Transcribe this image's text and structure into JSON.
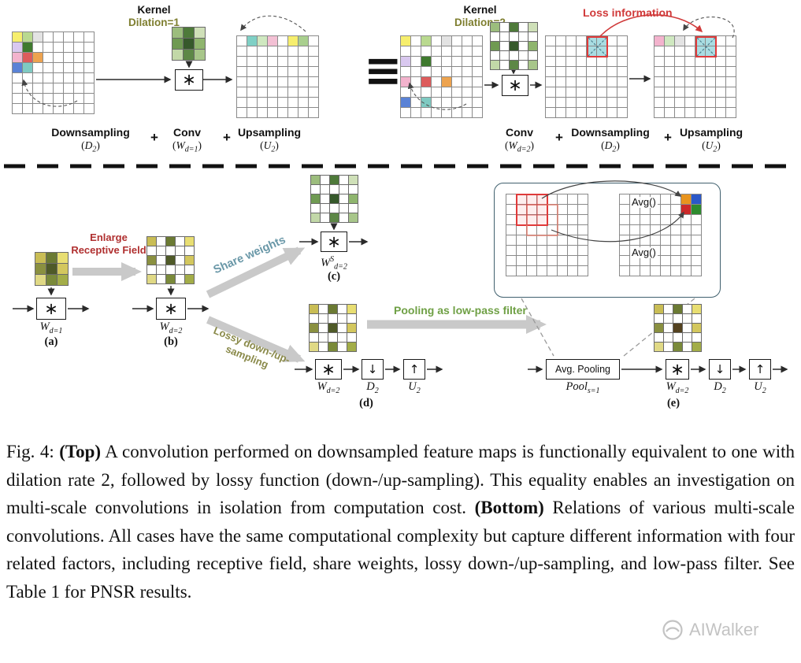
{
  "colors": {
    "dilation_label": "#7e7e2f",
    "loss_information": "#d03a3a",
    "enlarge_receptive_field": "#b03030",
    "share_weights": "#6a98a8",
    "lossy_sampling": "#8a8a4a",
    "pooling_filter": "#6fa045",
    "grid_line": "#8a8a8a",
    "arrow": "#2a2a2a",
    "thick_arrow": "#c9c9c9",
    "inset_border": "#40606e",
    "watermark": "#b9b9b9"
  },
  "top": {
    "left": {
      "kernel_title": "Kernel",
      "kernel_dilation": "Dilation=1",
      "conv_symbol": "∗",
      "plus": "+",
      "ops": [
        {
          "name": "Downsampling",
          "formula": [
            {
              "t": "(",
              "k": "n"
            },
            {
              "t": "D",
              "k": "i"
            },
            {
              "t": "2",
              "k": "sub"
            },
            {
              "t": ")",
              "k": "n"
            }
          ]
        },
        {
          "name": "Conv",
          "formula": [
            {
              "t": "(",
              "k": "n"
            },
            {
              "t": "W",
              "k": "i"
            },
            {
              "t": "d=1",
              "k": "sub"
            },
            {
              "t": ")",
              "k": "n"
            }
          ]
        },
        {
          "name": "Upsampling",
          "formula": [
            {
              "t": "(",
              "k": "n"
            },
            {
              "t": "U",
              "k": "i"
            },
            {
              "t": "2",
              "k": "sub"
            },
            {
              "t": ")",
              "k": "n"
            }
          ]
        }
      ]
    },
    "equiv": "≡",
    "right": {
      "kernel_title": "Kernel",
      "kernel_dilation": "Dilation=2",
      "loss_label": "Loss information",
      "conv_symbol": "∗",
      "plus": "+",
      "ops": [
        {
          "name": "Conv",
          "formula": [
            {
              "t": "(",
              "k": "n"
            },
            {
              "t": "W",
              "k": "i"
            },
            {
              "t": "d=2",
              "k": "sub"
            },
            {
              "t": ")",
              "k": "n"
            }
          ]
        },
        {
          "name": "Downsampling",
          "formula": [
            {
              "t": "(",
              "k": "n"
            },
            {
              "t": "D",
              "k": "i"
            },
            {
              "t": "2",
              "k": "sub"
            },
            {
              "t": ")",
              "k": "n"
            }
          ]
        },
        {
          "name": "Upsampling",
          "formula": [
            {
              "t": "(",
              "k": "n"
            },
            {
              "t": "U",
              "k": "i"
            },
            {
              "t": "2",
              "k": "sub"
            },
            {
              "t": ")",
              "k": "n"
            }
          ]
        }
      ]
    }
  },
  "bottom": {
    "enlarge_line1": "Enlarge",
    "enlarge_line2": "Receptive Field",
    "share_label": "Share weights",
    "lossy_line1": "Lossy down-/up-",
    "lossy_line2": "sampling",
    "pooling_label": "Pooling as low-pass filter",
    "avg_label_1": "Avg()",
    "avg_label_2": "Avg()",
    "avg_pooling_label": "Avg. Pooling",
    "conv_symbol": "∗",
    "down_symbol": "↓",
    "up_symbol": "↑",
    "tags": {
      "a": "(a)",
      "b": "(b)",
      "c": "(c)",
      "d": "(d)",
      "e": "(e)"
    },
    "math": {
      "wd1": [
        {
          "t": "W",
          "k": "i"
        },
        {
          "t": "d=1",
          "k": "sub"
        }
      ],
      "wd2": [
        {
          "t": "W",
          "k": "i"
        },
        {
          "t": "d=2",
          "k": "sub"
        }
      ],
      "wsd2": [
        {
          "t": "W",
          "k": "i"
        },
        {
          "t": "S",
          "k": "sup"
        },
        {
          "t": "d=2",
          "k": "sub"
        }
      ],
      "d2": [
        {
          "t": "D",
          "k": "i"
        },
        {
          "t": "2",
          "k": "sub"
        }
      ],
      "u2": [
        {
          "t": "U",
          "k": "i"
        },
        {
          "t": "2",
          "k": "sub"
        }
      ],
      "pool": [
        {
          "t": "Pool",
          "k": "i"
        },
        {
          "t": "s=1",
          "k": "sub"
        }
      ]
    }
  },
  "grids": {
    "featureA": {
      "rows": 8,
      "cols": 8,
      "cell": 12,
      "line": "#8a8a8a",
      "cells": {
        "0,0": "#f6ee6d",
        "0,1": "#b9d98f",
        "0,2": "#e3e3e3",
        "1,0": "#d9c8ef",
        "1,1": "#3f7a2e",
        "2,0": "#f3b3cd",
        "2,1": "#dd5c5c",
        "2,2": "#eda34f",
        "3,0": "#5a82d6",
        "3,1": "#7fcac2"
      }
    },
    "featureB": {
      "rows": 8,
      "cols": 8,
      "cell": 12,
      "line": "#8a8a8a",
      "cells": {
        "0,1": "#7fd0c5",
        "0,2": "#cfe8c0",
        "0,3": "#f3c0d4",
        "0,5": "#f6ee6d",
        "0,6": "#a9cf8e"
      }
    },
    "featureC": {
      "rows": 8,
      "cols": 8,
      "cell": 12,
      "line": "#8a8a8a",
      "cells": {
        "0,0": "#f6ee6d",
        "0,2": "#b9d98f",
        "0,4": "#e3e3e3",
        "2,0": "#d9c8ef",
        "2,2": "#3f7a2e",
        "4,0": "#f3b3cd",
        "4,2": "#dd5c5c",
        "4,4": "#eda34f",
        "6,0": "#5a82d6",
        "6,2": "#7fcac2"
      }
    },
    "featureD": {
      "rows": 8,
      "cols": 8,
      "cell": 12,
      "line": "#8a8a8a",
      "cells": {
        "0,4": "#a9dde2",
        "0,5": "#a9dde2",
        "1,4": "#a9dde2",
        "1,5": "#a9dde2"
      }
    },
    "featureE": {
      "rows": 8,
      "cols": 8,
      "cell": 12,
      "line": "#8a8a8a",
      "cells": {
        "0,0": "#f3b3cd",
        "0,1": "#cfe8c0",
        "0,2": "#e3e3e3",
        "0,4": "#a9dde2",
        "0,5": "#a9dde2",
        "1,4": "#a9dde2",
        "1,5": "#a9dde2"
      }
    },
    "kernel1": {
      "rows": 3,
      "cols": 3,
      "cell": 13,
      "line": "#6a6a6a",
      "cells": {
        "0,0": "#9cbd7d",
        "0,1": "#4e7a3a",
        "0,2": "#cfe0b8",
        "1,0": "#6f9a52",
        "1,1": "#36592b",
        "1,2": "#8fb56e",
        "2,0": "#c2d8a8",
        "2,1": "#5d8746",
        "2,2": "#a8c68a"
      }
    },
    "kernel2": {
      "rows": 5,
      "cols": 5,
      "cell": 11,
      "line": "#6a6a6a",
      "cells": {
        "0,0": "#9cbd7d",
        "0,2": "#4e7a3a",
        "0,4": "#cfe0b8",
        "2,0": "#6f9a52",
        "2,2": "#36592b",
        "2,4": "#8fb56e",
        "4,0": "#c2d8a8",
        "4,2": "#5d8746",
        "4,4": "#a8c68a"
      }
    },
    "kernelA": {
      "rows": 3,
      "cols": 3,
      "cell": 13,
      "line": "#6a6a6a",
      "cells": {
        "0,0": "#c9bd55",
        "0,1": "#6b7a33",
        "0,2": "#e8de72",
        "1,0": "#8a9040",
        "1,1": "#4f5a28",
        "1,2": "#d3c75e",
        "2,0": "#e0d985",
        "2,1": "#7a8a3a",
        "2,2": "#a3ad48"
      }
    },
    "kernelB": {
      "rows": 5,
      "cols": 5,
      "cell": 11,
      "line": "#6a6a6a",
      "cells": {
        "0,0": "#c9bd55",
        "0,2": "#6b7a33",
        "0,4": "#e8de72",
        "2,0": "#8a9040",
        "2,2": "#4f5a28",
        "2,4": "#d3c75e",
        "4,0": "#e0d985",
        "4,2": "#7a8a3a",
        "4,4": "#a3ad48"
      }
    },
    "kernelE": {
      "rows": 5,
      "cols": 5,
      "cell": 11,
      "line": "#6a6a6a",
      "cells": {
        "0,0": "#c9bd55",
        "0,2": "#6b7a33",
        "0,4": "#e8de72",
        "2,0": "#8a9040",
        "2,2": "#54421f",
        "2,4": "#d3c75e",
        "4,0": "#e0d985",
        "4,2": "#7a8a3a",
        "4,4": "#a3ad48"
      }
    },
    "insetL": {
      "rows": 8,
      "cols": 8,
      "cell": 12,
      "line": "#8a8a8a",
      "cells": {
        "0,1": "#fdeeee",
        "0,2": "#fdeeee",
        "0,3": "#fdeeee",
        "1,1": "#fdeeee",
        "1,2": "#fdeeee",
        "1,3": "#fdeeee",
        "2,1": "#fdeeee",
        "2,2": "#fdeeee",
        "2,3": "#fdeeee"
      }
    },
    "insetR": {
      "rows": 8,
      "cols": 8,
      "cell": 12,
      "line": "#8a8a8a",
      "cells": {
        "0,6": "#e8941e",
        "0,7": "#2b58c8",
        "1,6": "#cc2a2a",
        "1,7": "#2e8b2e"
      }
    }
  },
  "caption": {
    "runs": [
      {
        "t": "Fig. 4: ",
        "b": false
      },
      {
        "t": "(Top)",
        "b": true
      },
      {
        "t": " A convolution performed on downsampled feature maps is functionally equivalent to one with dilation rate 2, followed by lossy function (down-/up-sampling). This equality enables an investigation on multi-scale convolutions in isolation from computation cost. ",
        "b": false
      },
      {
        "t": "(Bottom)",
        "b": true
      },
      {
        "t": " Relations of various multi-scale convolutions. All cases have the same computational complexity but capture different information with four related factors, including receptive field, share weights, lossy down-/up-sampling, and low-pass filter. See Table 1 for PNSR results.",
        "b": false
      }
    ]
  },
  "watermark": "AIWalker"
}
